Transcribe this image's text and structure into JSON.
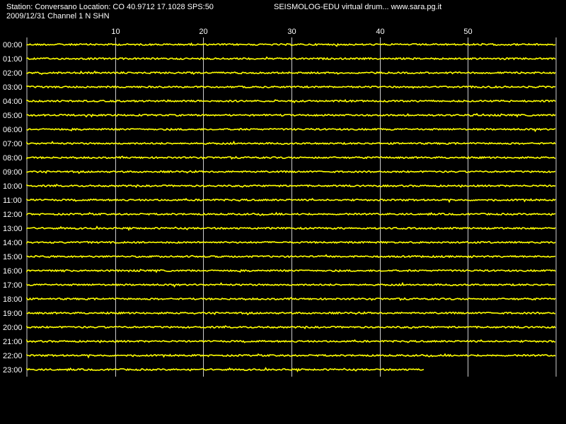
{
  "header": {
    "station_line": "Station: Conversano Location: CO 40.9712 17.1028 SPS:50",
    "brand": "SEISMOLOG-EDU virtual drum... www.sara.pg.it",
    "date_line": "2009/12/31  Channel 1 N SHN"
  },
  "colors": {
    "background": "#000000",
    "trace": "#ffff00",
    "frame": "#cccccc",
    "text": "#ffffff"
  },
  "chart_data": {
    "type": "line",
    "title": "",
    "xlabel": "",
    "ylabel": "",
    "xlim": [
      0,
      60
    ],
    "x_ticks": [
      10,
      20,
      30,
      40,
      50
    ],
    "grid": true,
    "rows": [
      "00:00",
      "01:00",
      "02:00",
      "03:00",
      "04:00",
      "05:00",
      "06:00",
      "07:00",
      "08:00",
      "09:00",
      "10:00",
      "11:00",
      "12:00",
      "13:00",
      "14:00",
      "15:00",
      "16:00",
      "17:00",
      "18:00",
      "19:00",
      "20:00",
      "21:00",
      "22:00",
      "23:00"
    ],
    "last_row_end_minute": 45
  }
}
